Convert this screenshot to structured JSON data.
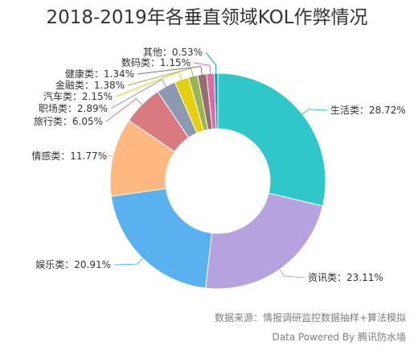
{
  "chart_data": {
    "type": "pie",
    "variant": "donut",
    "title": "2018-2019年各垂直领域KOL作弊情况",
    "slices": [
      {
        "label": "生活类",
        "value": 28.72,
        "display": "生活类：28.72%",
        "color": "#2fc7c9"
      },
      {
        "label": "资讯类",
        "value": 23.11,
        "display": "资讯类：23.11%",
        "color": "#b6a2de"
      },
      {
        "label": "娱乐类",
        "value": 20.91,
        "display": "娱乐类：20.91%",
        "color": "#5ab1ef"
      },
      {
        "label": "情感类",
        "value": 11.77,
        "display": "情感类：11.77%",
        "color": "#ffb980"
      },
      {
        "label": "旅行类",
        "value": 6.05,
        "display": "旅行类：6.05%",
        "color": "#d87a80"
      },
      {
        "label": "职场类",
        "value": 2.89,
        "display": "职场类：2.89%",
        "color": "#8d98b3"
      },
      {
        "label": "汽车类",
        "value": 2.15,
        "display": "汽车类：2.15%",
        "color": "#e5cf0d"
      },
      {
        "label": "金融类",
        "value": 1.38,
        "display": "金融类：1.38%",
        "color": "#97b552"
      },
      {
        "label": "健康类",
        "value": 1.34,
        "display": "健康类：1.34%",
        "color": "#95706d"
      },
      {
        "label": "数码类",
        "value": 1.15,
        "display": "数码类：1.15%",
        "color": "#dc69aa"
      },
      {
        "label": "其他",
        "value": 0.53,
        "display": "其他：0.53%",
        "color": "#07a2a4"
      }
    ]
  },
  "footer": {
    "source": "数据来源：情报调研监控数据抽样+算法模拟",
    "credit": "Data Powered By 腾讯防水墙"
  }
}
